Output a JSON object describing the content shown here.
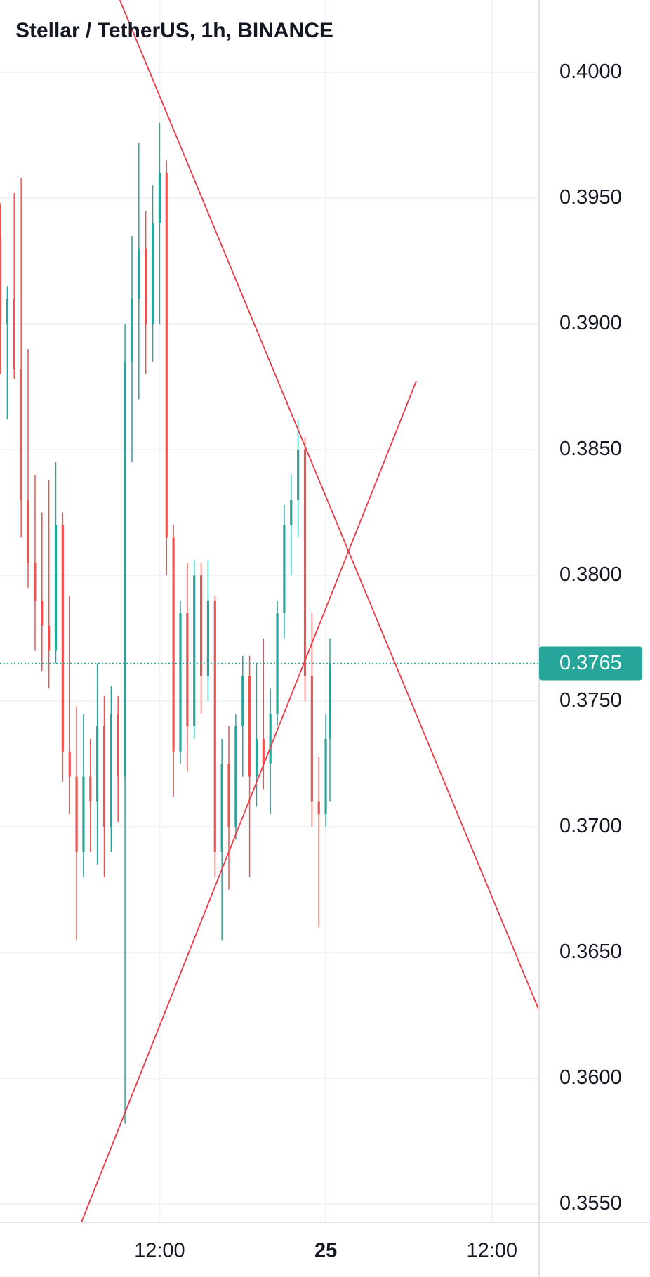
{
  "chart_data": {
    "type": "candlestick",
    "title": "Stellar / TetherUS, 1h, BINANCE",
    "x": [
      0.5,
      1,
      1.5,
      2,
      2.5,
      3,
      3.5,
      4,
      4.5,
      5,
      5.5,
      6,
      6.5,
      7,
      7.5,
      8,
      8.5,
      9,
      9.5,
      10,
      10.5,
      11,
      11.5,
      12,
      12.5,
      13,
      13.5,
      14,
      14.5,
      15,
      15.5,
      16,
      16.5,
      17,
      17.5,
      18,
      18.5,
      19,
      19.5,
      20,
      20.5,
      21,
      21.5,
      22,
      22.5,
      23,
      23.5,
      24,
      24.3
    ],
    "open": [
      0.3935,
      0.39,
      0.391,
      0.3882,
      0.383,
      0.3805,
      0.379,
      0.378,
      0.377,
      0.382,
      0.373,
      0.372,
      0.369,
      0.372,
      0.371,
      0.374,
      0.37,
      0.3745,
      0.372,
      0.3885,
      0.391,
      0.393,
      0.39,
      0.394,
      0.396,
      0.3815,
      0.373,
      0.3785,
      0.374,
      0.38,
      0.376,
      0.379,
      0.369,
      0.3725,
      0.37,
      0.374,
      0.376,
      0.372,
      0.3735,
      0.3725,
      0.3745,
      0.3785,
      0.382,
      0.383,
      0.385,
      0.376,
      0.371,
      0.3705,
      0.3735
    ],
    "high": [
      0.3948,
      0.3915,
      0.3952,
      0.3958,
      0.389,
      0.384,
      0.3825,
      0.3838,
      0.3845,
      0.3825,
      0.3792,
      0.3748,
      0.3745,
      0.3735,
      0.3765,
      0.3752,
      0.3756,
      0.3752,
      0.39,
      0.3935,
      0.3972,
      0.3945,
      0.3955,
      0.398,
      0.3965,
      0.382,
      0.379,
      0.3805,
      0.3806,
      0.3805,
      0.3806,
      0.3792,
      0.3735,
      0.374,
      0.3745,
      0.3768,
      0.3768,
      0.3765,
      0.3775,
      0.3755,
      0.379,
      0.3828,
      0.384,
      0.3862,
      0.3855,
      0.3785,
      0.3728,
      0.3745,
      0.3775
    ],
    "low": [
      0.388,
      0.3862,
      0.3878,
      0.3815,
      0.3795,
      0.377,
      0.3762,
      0.3755,
      0.3765,
      0.3718,
      0.3705,
      0.3655,
      0.368,
      0.369,
      0.3685,
      0.368,
      0.369,
      0.3702,
      0.3582,
      0.3845,
      0.387,
      0.388,
      0.3885,
      0.39,
      0.38,
      0.3712,
      0.3725,
      0.3722,
      0.3735,
      0.3745,
      0.375,
      0.368,
      0.3655,
      0.3675,
      0.3695,
      0.372,
      0.368,
      0.3708,
      0.3715,
      0.3705,
      0.374,
      0.3775,
      0.38,
      0.3815,
      0.375,
      0.37,
      0.366,
      0.37,
      0.371
    ],
    "close": [
      0.39,
      0.391,
      0.3882,
      0.383,
      0.3805,
      0.379,
      0.378,
      0.377,
      0.382,
      0.373,
      0.372,
      0.369,
      0.372,
      0.371,
      0.374,
      0.37,
      0.3745,
      0.372,
      0.3885,
      0.391,
      0.393,
      0.39,
      0.394,
      0.396,
      0.3815,
      0.373,
      0.3785,
      0.374,
      0.38,
      0.376,
      0.379,
      0.369,
      0.3725,
      0.37,
      0.374,
      0.376,
      0.372,
      0.3735,
      0.3725,
      0.3745,
      0.3785,
      0.382,
      0.383,
      0.385,
      0.376,
      0.371,
      0.3705,
      0.3735,
      0.3765
    ],
    "up_color": "#26a69a",
    "down_color": "#ef5350",
    "trendlines": [
      {
        "color": "#f23645",
        "x": [
          9.12,
          39.41
        ],
        "y": [
          0.40288,
          0.3627
        ]
      },
      {
        "color": "#f23645",
        "x": [
          6.35,
          30.53
        ],
        "y": [
          0.35428,
          0.38772
        ]
      }
    ],
    "last_price": {
      "value": 0.3765,
      "label": "0.3765",
      "color": "#26a69a"
    },
    "xlim": [
      0.47,
      39.41
    ],
    "xticks": [
      {
        "value": 12,
        "label": "12:00"
      },
      {
        "value": 24,
        "label": "25"
      },
      {
        "value": 36,
        "label": "12:00"
      }
    ],
    "ylim": [
      0.35428,
      0.40288
    ],
    "yticks": [
      {
        "value": 0.355,
        "label": "0.3550"
      },
      {
        "value": 0.36,
        "label": "0.3600"
      },
      {
        "value": 0.365,
        "label": "0.3650"
      },
      {
        "value": 0.37,
        "label": "0.3700"
      },
      {
        "value": 0.375,
        "label": "0.3750"
      },
      {
        "value": 0.38,
        "label": "0.3800"
      },
      {
        "value": 0.385,
        "label": "0.3850"
      },
      {
        "value": 0.39,
        "label": "0.3900"
      },
      {
        "value": 0.395,
        "label": "0.3950"
      },
      {
        "value": 0.4,
        "label": "0.4000"
      }
    ],
    "grid": true
  }
}
